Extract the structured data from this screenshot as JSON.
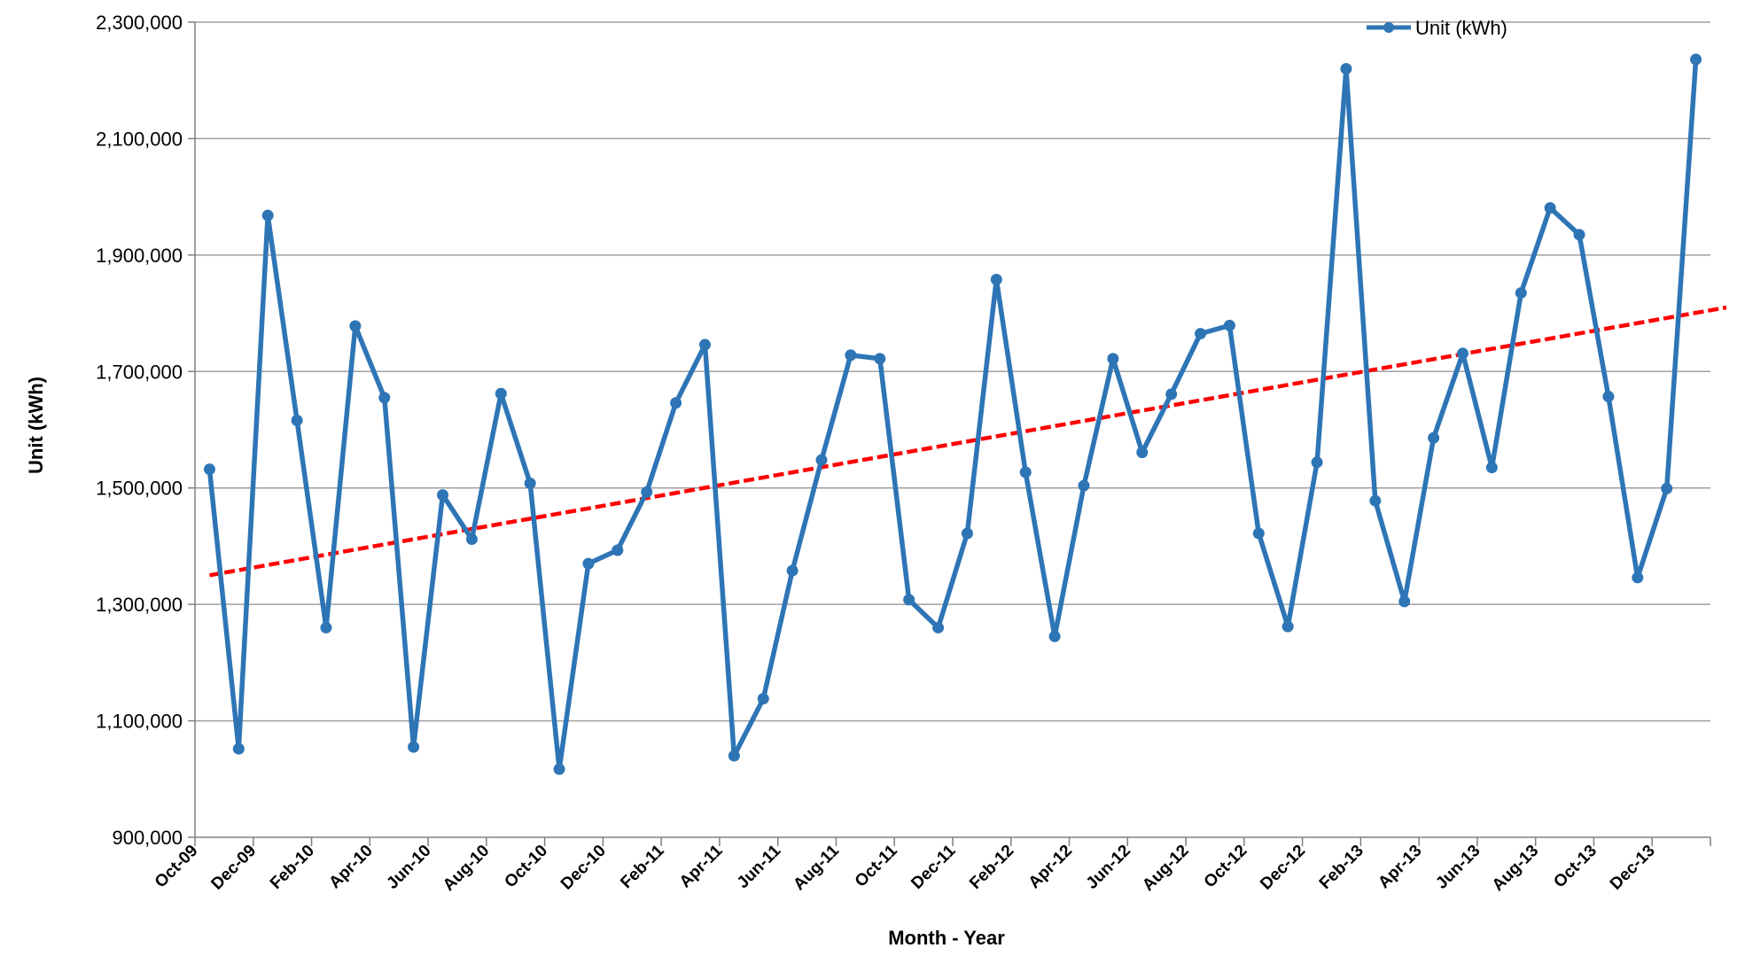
{
  "chart_data": {
    "type": "line",
    "title": "",
    "xlabel": "Month - Year",
    "ylabel": "Unit (kWh)",
    "ylim": [
      900000,
      2300000
    ],
    "yticks": [
      900000,
      1100000,
      1300000,
      1500000,
      1700000,
      1900000,
      2100000,
      2300000
    ],
    "ytick_labels": [
      "900,000",
      "1,100,000",
      "1,300,000",
      "1,500,000",
      "1,700,000",
      "1,900,000",
      "2,100,000",
      "2,300,000"
    ],
    "xtick_labels": [
      "Oct-09",
      "Dec-09",
      "Feb-10",
      "Apr-10",
      "Jun-10",
      "Aug-10",
      "Oct-10",
      "Dec-10",
      "Feb-11",
      "Apr-11",
      "Jun-11",
      "Aug-11",
      "Oct-11",
      "Dec-11",
      "Feb-12",
      "Apr-12",
      "Jun-12",
      "Aug-12",
      "Oct-12",
      "Dec-12",
      "Feb-13",
      "Apr-13",
      "Jun-13",
      "Aug-13",
      "Oct-13",
      "Dec-13"
    ],
    "grid": true,
    "legend_position": "top-right",
    "colors": {
      "series": "#2E75B6",
      "trend": "#FF0000",
      "grid": "#A0A0A0",
      "axis": "#808080"
    },
    "series": [
      {
        "name": "Unit (kWh)",
        "values": [
          1532000,
          1052000,
          1968000,
          1616000,
          1260000,
          1778000,
          1655000,
          1055000,
          1488000,
          1412000,
          1662000,
          1508000,
          1017000,
          1370000,
          1393000,
          1493000,
          1646000,
          1746000,
          1040000,
          1138000,
          1358000,
          1548000,
          1728000,
          1722000,
          1308000,
          1260000,
          1422000,
          1858000,
          1527000,
          1245000,
          1504000,
          1722000,
          1561000,
          1661000,
          1765000,
          1779000,
          1422000,
          1262000,
          1544000,
          2220000,
          1478000,
          1305000,
          1586000,
          1731000,
          1535000,
          1835000,
          1981000,
          1935000,
          1657000,
          1346000,
          1499000,
          2236000
        ]
      }
    ],
    "trendline": {
      "start_value": 1350000,
      "end_value": 1810000,
      "style": "dashed"
    }
  }
}
